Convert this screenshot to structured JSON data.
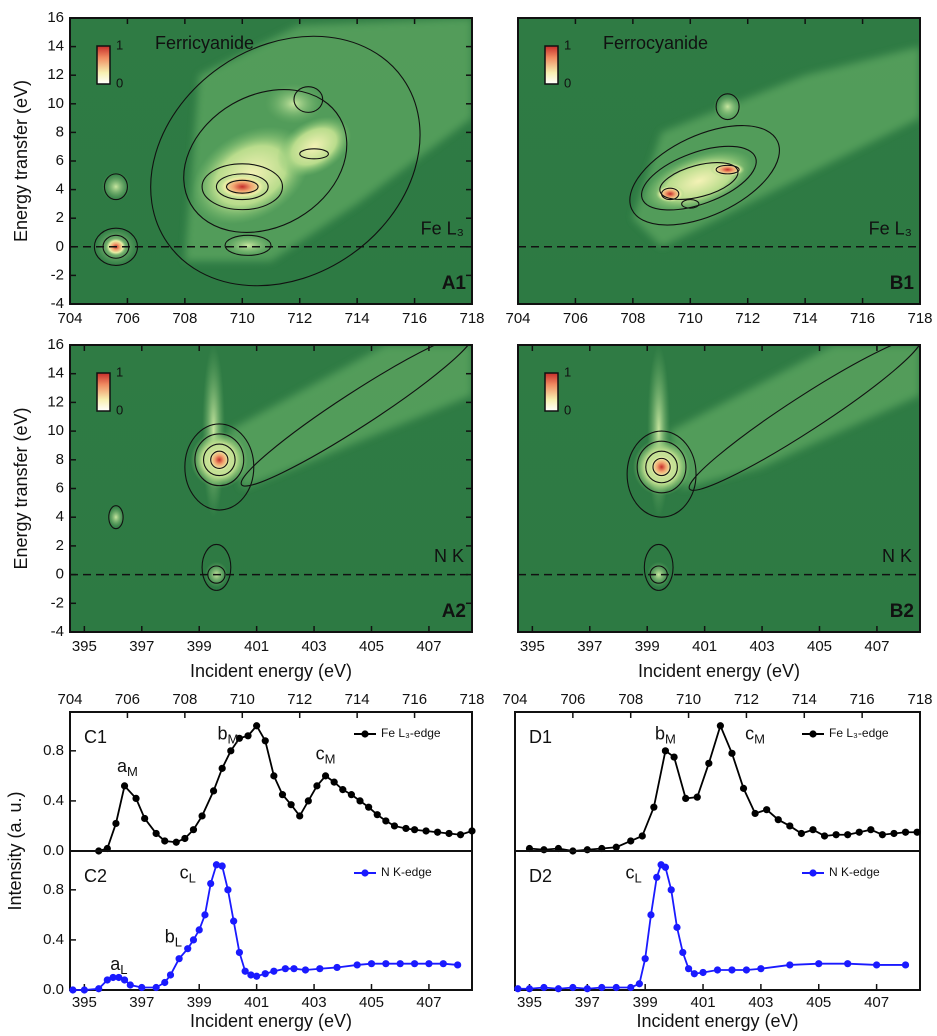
{
  "chart_data": [
    {
      "type": "heatmap",
      "panel": "A1",
      "title": "Ferricyanide",
      "annotation": "Fe L₃",
      "xlim": [
        704,
        718
      ],
      "xticks": [
        704,
        706,
        708,
        710,
        712,
        714,
        716,
        718
      ],
      "ylim": [
        -4,
        16
      ],
      "yticks": [
        -4,
        -2,
        0,
        2,
        4,
        6,
        8,
        10,
        12,
        14,
        16
      ],
      "ylabel": "Energy transfer (eV)",
      "colorbar_ticks": [
        0,
        1
      ],
      "hline": 0
    },
    {
      "type": "heatmap",
      "panel": "B1",
      "title": "Ferrocyanide",
      "annotation": "Fe L₃",
      "xlim": [
        704,
        718
      ],
      "xticks": [
        704,
        706,
        708,
        710,
        712,
        714,
        716,
        718
      ],
      "ylim": [
        -4,
        16
      ],
      "colorbar_ticks": [
        0,
        1
      ],
      "hline": 0
    },
    {
      "type": "heatmap",
      "panel": "A2",
      "annotation": "N K",
      "xlim": [
        394.5,
        408.5
      ],
      "xticks": [
        395,
        397,
        399,
        401,
        403,
        405,
        407
      ],
      "ylim": [
        -4,
        16
      ],
      "yticks": [
        -4,
        -2,
        0,
        2,
        4,
        6,
        8,
        10,
        12,
        14,
        16
      ],
      "xlabel": "Incident energy (eV)",
      "ylabel": "Energy transfer (eV)",
      "colorbar_ticks": [
        0,
        1
      ],
      "hline": 0
    },
    {
      "type": "heatmap",
      "panel": "B2",
      "annotation": "N K",
      "xlim": [
        394.5,
        408.5
      ],
      "xticks": [
        395,
        397,
        399,
        401,
        403,
        405,
        407
      ],
      "ylim": [
        -4,
        16
      ],
      "xlabel": "Incident energy (eV)",
      "colorbar_ticks": [
        0,
        1
      ],
      "hline": 0
    },
    {
      "type": "line",
      "panel": "C1",
      "xaxis": "top",
      "xlim": [
        704,
        718
      ],
      "xticks": [
        704,
        706,
        708,
        710,
        712,
        714,
        716,
        718
      ],
      "ylim": [
        0,
        1.11
      ],
      "yticks": [
        {
          "value": 0,
          "label": "0.0"
        },
        {
          "value": 0.4,
          "label": "0.4"
        },
        {
          "value": 0.8,
          "label": "0.8"
        }
      ],
      "ylabel": "Intensity (a. u.)",
      "x": [
        705.0,
        705.3,
        705.6,
        705.9,
        706.3,
        706.6,
        707.0,
        707.3,
        707.7,
        708.0,
        708.3,
        708.6,
        709.0,
        709.3,
        709.6,
        709.9,
        710.2,
        710.5,
        710.8,
        711.1,
        711.4,
        711.7,
        712.0,
        712.3,
        712.6,
        712.9,
        713.2,
        713.5,
        713.8,
        714.1,
        714.4,
        714.7,
        715.0,
        715.3,
        715.7,
        716.0,
        716.4,
        716.8,
        717.2,
        717.6,
        718.0
      ],
      "series": [
        {
          "name": "Fe L₃-edge",
          "color": "#000000",
          "values": [
            0.0,
            0.02,
            0.22,
            0.52,
            0.42,
            0.26,
            0.14,
            0.08,
            0.07,
            0.1,
            0.17,
            0.28,
            0.48,
            0.66,
            0.8,
            0.9,
            0.92,
            1.0,
            0.88,
            0.6,
            0.45,
            0.37,
            0.28,
            0.4,
            0.52,
            0.6,
            0.55,
            0.49,
            0.45,
            0.4,
            0.35,
            0.29,
            0.24,
            0.2,
            0.18,
            0.17,
            0.16,
            0.15,
            0.14,
            0.13,
            0.16
          ]
        }
      ],
      "annotations": [
        {
          "text": "a",
          "sub": "M"
        },
        {
          "text": "b",
          "sub": "M"
        },
        {
          "text": "c",
          "sub": "M"
        }
      ]
    },
    {
      "type": "line",
      "panel": "C2",
      "xaxis": "bottom",
      "xlim": [
        394.5,
        408.5
      ],
      "xticks": [
        395,
        397,
        399,
        401,
        403,
        405,
        407
      ],
      "ylim": [
        0,
        1.11
      ],
      "yticks": [
        {
          "value": 0,
          "label": "0.0"
        },
        {
          "value": 0.4,
          "label": "0.4"
        },
        {
          "value": 0.8,
          "label": "0.8"
        }
      ],
      "xlabel": "Incident energy (eV)",
      "x": [
        394.6,
        395.0,
        395.5,
        395.8,
        396.0,
        396.2,
        396.4,
        396.6,
        397.0,
        397.5,
        397.8,
        398.0,
        398.3,
        398.6,
        398.8,
        399.0,
        399.2,
        399.4,
        399.6,
        399.8,
        400.0,
        400.2,
        400.4,
        400.6,
        400.8,
        401.0,
        401.3,
        401.6,
        402.0,
        402.3,
        402.7,
        403.2,
        403.8,
        404.5,
        405.0,
        405.5,
        406.0,
        406.5,
        407.0,
        407.5,
        408.0
      ],
      "series": [
        {
          "name": "N K-edge",
          "color": "#1a1aff",
          "values": [
            0.0,
            0.0,
            0.01,
            0.08,
            0.1,
            0.1,
            0.08,
            0.04,
            0.02,
            0.02,
            0.06,
            0.12,
            0.25,
            0.33,
            0.4,
            0.48,
            0.6,
            0.85,
            1.0,
            0.99,
            0.8,
            0.55,
            0.3,
            0.15,
            0.12,
            0.11,
            0.13,
            0.15,
            0.17,
            0.17,
            0.16,
            0.17,
            0.18,
            0.2,
            0.21,
            0.21,
            0.21,
            0.21,
            0.21,
            0.21,
            0.2
          ]
        }
      ],
      "annotations": [
        {
          "text": "a",
          "sub": "L"
        },
        {
          "text": "b",
          "sub": "L"
        },
        {
          "text": "c",
          "sub": "L"
        }
      ]
    },
    {
      "type": "line",
      "panel": "D1",
      "xaxis": "top",
      "xlim": [
        704,
        718
      ],
      "xticks": [
        704,
        706,
        708,
        710,
        712,
        714,
        716,
        718
      ],
      "ylim": [
        0,
        1.11
      ],
      "x": [
        704.5,
        705.0,
        705.5,
        706.0,
        706.5,
        707.0,
        707.5,
        708.0,
        708.4,
        708.8,
        709.2,
        709.5,
        709.9,
        710.3,
        710.7,
        711.1,
        711.5,
        711.9,
        712.3,
        712.7,
        713.1,
        713.5,
        713.9,
        714.3,
        714.7,
        715.1,
        715.5,
        715.9,
        716.3,
        716.7,
        717.1,
        717.5,
        717.9
      ],
      "series": [
        {
          "name": "Fe L₃-edge",
          "color": "#000000",
          "values": [
            0.02,
            0.01,
            0.02,
            0.0,
            0.01,
            0.02,
            0.03,
            0.08,
            0.12,
            0.35,
            0.8,
            0.75,
            0.42,
            0.43,
            0.7,
            1.0,
            0.78,
            0.5,
            0.3,
            0.33,
            0.25,
            0.2,
            0.14,
            0.17,
            0.12,
            0.13,
            0.13,
            0.15,
            0.17,
            0.13,
            0.14,
            0.15,
            0.15
          ]
        }
      ],
      "annotations": [
        {
          "text": "b",
          "sub": "M"
        },
        {
          "text": "c",
          "sub": "M"
        }
      ]
    },
    {
      "type": "line",
      "panel": "D2",
      "xaxis": "bottom",
      "xlim": [
        394.5,
        408.5
      ],
      "xticks": [
        395,
        397,
        399,
        401,
        403,
        405,
        407
      ],
      "ylim": [
        0,
        1.11
      ],
      "xlabel": "Incident energy (eV)",
      "x": [
        394.6,
        395.0,
        395.5,
        396.0,
        396.5,
        397.0,
        397.5,
        398.0,
        398.5,
        398.8,
        399.0,
        399.2,
        399.4,
        399.55,
        399.7,
        399.9,
        400.1,
        400.3,
        400.5,
        400.7,
        401.0,
        401.5,
        402.0,
        402.5,
        403.0,
        404.0,
        405.0,
        406.0,
        407.0,
        408.0
      ],
      "series": [
        {
          "name": "N K-edge",
          "color": "#1a1aff",
          "values": [
            0.01,
            0.01,
            0.02,
            0.01,
            0.02,
            0.01,
            0.02,
            0.02,
            0.02,
            0.05,
            0.25,
            0.6,
            0.9,
            1.0,
            0.98,
            0.8,
            0.5,
            0.3,
            0.17,
            0.13,
            0.14,
            0.16,
            0.16,
            0.16,
            0.17,
            0.2,
            0.21,
            0.21,
            0.2,
            0.2
          ]
        }
      ],
      "annotations": [
        {
          "text": "c",
          "sub": "L"
        }
      ]
    }
  ]
}
